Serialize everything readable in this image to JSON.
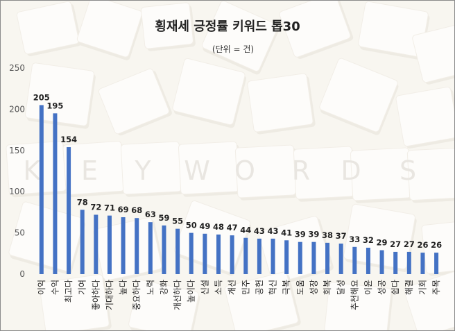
{
  "colors": {
    "bar": "#4472C4",
    "background": "#F3EFE6",
    "tile": "#FBFAF6"
  },
  "background_letters": [
    "K",
    "E",
    "Y",
    "W",
    "O",
    "R",
    "D",
    "S"
  ],
  "chart_data": {
    "type": "bar",
    "title": "횡재세 긍정률 키워드 톱30",
    "subtitle": "(단위 = 건)",
    "xlabel": "",
    "ylabel": "",
    "ylim": [
      0,
      250
    ],
    "yticks": [
      0,
      50,
      100,
      150,
      200,
      250
    ],
    "grid": false,
    "categories": [
      "이익",
      "수익",
      "최고다",
      "기여",
      "좋아하다",
      "기대하다",
      "높다",
      "중요하다",
      "노력",
      "강화",
      "개선하다",
      "높이다",
      "신설",
      "소득",
      "개선",
      "민주",
      "공헌",
      "혁신",
      "극복",
      "도움",
      "성장",
      "회복",
      "달성",
      "추천해요",
      "이윤",
      "성공",
      "쉽다",
      "해결",
      "기회",
      "주목"
    ],
    "values": [
      205,
      195,
      154,
      78,
      72,
      71,
      69,
      68,
      63,
      59,
      55,
      50,
      49,
      48,
      47,
      44,
      43,
      43,
      41,
      39,
      39,
      38,
      37,
      33,
      32,
      29,
      27,
      27,
      26,
      26
    ]
  }
}
